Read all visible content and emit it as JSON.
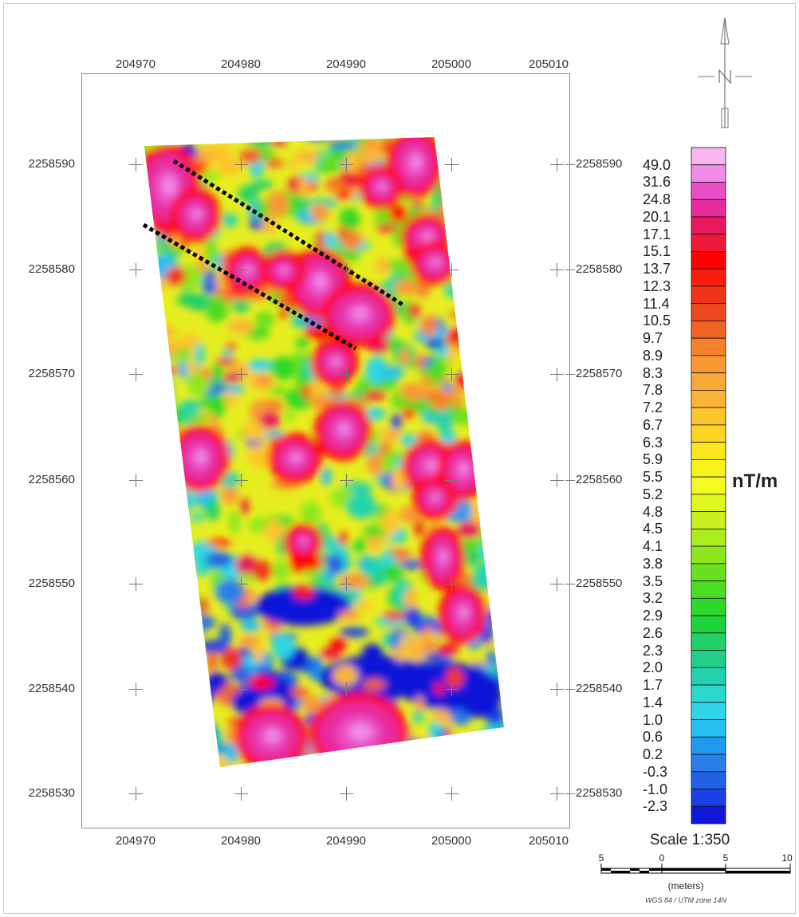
{
  "map": {
    "x_ticks": [
      "204970",
      "204980",
      "204990",
      "205000",
      "205010"
    ],
    "y_ticks": [
      "2258590",
      "2258580",
      "2258570",
      "2258560",
      "2258550",
      "2258540",
      "2258530"
    ],
    "unit": "nT/m",
    "scale": "Scale 1:350",
    "scale_bar_ticks": [
      "5",
      "0",
      "5",
      "10"
    ],
    "scale_bar_units": "(meters)",
    "crs": "WGS 84 / UTM zone 14N"
  },
  "legend": {
    "values": [
      "49.0",
      "31.6",
      "24.8",
      "20.1",
      "17.1",
      "15.1",
      "13.7",
      "12.3",
      "11.4",
      "10.5",
      "9.7",
      "8.9",
      "8.3",
      "7.8",
      "7.2",
      "6.7",
      "6.3",
      "5.9",
      "5.5",
      "5.2",
      "4.8",
      "4.5",
      "4.1",
      "3.8",
      "3.5",
      "3.2",
      "2.9",
      "2.6",
      "2.3",
      "2.0",
      "1.7",
      "1.4",
      "1.0",
      "0.6",
      "0.2",
      "-0.3",
      "-1.0",
      "-2.3"
    ],
    "colors": [
      "#f7b6f0",
      "#f08be6",
      "#e94dc8",
      "#e92a9a",
      "#e8175e",
      "#f01839",
      "#fe0000",
      "#f81d0d",
      "#f0341a",
      "#ec4a1e",
      "#ef6422",
      "#f5822a",
      "#f89834",
      "#f9a737",
      "#fbb536",
      "#fdc52c",
      "#fed424",
      "#fbe61f",
      "#f7f41b",
      "#f2fb22",
      "#dff61f",
      "#c8f01f",
      "#aced1c",
      "#8ee61c",
      "#6be01e",
      "#4cdc23",
      "#2fd828",
      "#1dd33c",
      "#22d067",
      "#22ce8a",
      "#24d3ad",
      "#2ad8ce",
      "#2fd6e7",
      "#25bff0",
      "#1f9af0",
      "#2a7ee8",
      "#2162e4",
      "#1c3fe8",
      "#1018d8"
    ]
  },
  "annotations": {
    "color": "#000000",
    "style": "dotted"
  }
}
